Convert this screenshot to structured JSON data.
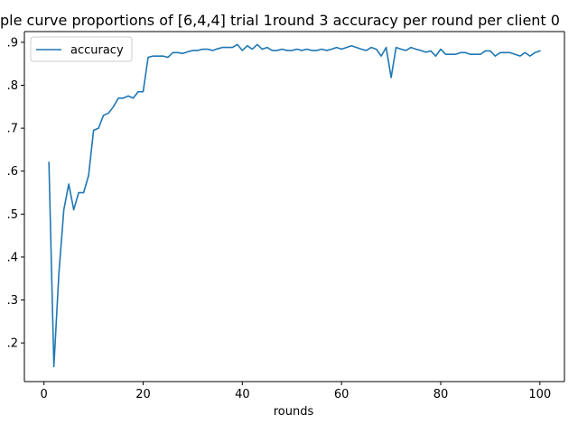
{
  "chart_data": {
    "type": "line",
    "title": "ple curve proportions of [6,4,4] trial 1round 3 accuracy per round per client 0",
    "xlabel": "rounds",
    "ylabel": "",
    "xlim": [
      -3.95,
      104.95
    ],
    "ylim": [
      0.11,
      0.925
    ],
    "xticks": [
      0,
      20,
      40,
      60,
      80,
      100
    ],
    "yticks": [
      0.2,
      0.3,
      0.4,
      0.5,
      0.6,
      0.7,
      0.8,
      0.9
    ],
    "ytick_labels": [
      ".2",
      ".3",
      ".4",
      ".5",
      ".6",
      ".7",
      ".8",
      ".9"
    ],
    "grid": false,
    "legend": {
      "position": "top-left",
      "entries": [
        "accuracy"
      ]
    },
    "series": [
      {
        "name": "accuracy",
        "color": "#1f77b4",
        "x": [
          1,
          2,
          3,
          4,
          5,
          6,
          7,
          8,
          9,
          10,
          11,
          12,
          13,
          14,
          15,
          16,
          17,
          18,
          19,
          20,
          21,
          22,
          23,
          24,
          25,
          26,
          27,
          28,
          29,
          30,
          31,
          32,
          33,
          34,
          35,
          36,
          37,
          38,
          39,
          40,
          41,
          42,
          43,
          44,
          45,
          46,
          47,
          48,
          49,
          50,
          51,
          52,
          53,
          54,
          55,
          56,
          57,
          58,
          59,
          60,
          61,
          62,
          63,
          64,
          65,
          66,
          67,
          68,
          69,
          70,
          71,
          72,
          73,
          74,
          75,
          76,
          77,
          78,
          79,
          80,
          81,
          82,
          83,
          84,
          85,
          86,
          87,
          88,
          89,
          90,
          91,
          92,
          93,
          94,
          95,
          96,
          97,
          98,
          99,
          100
        ],
        "y": [
          0.62,
          0.145,
          0.36,
          0.51,
          0.57,
          0.51,
          0.55,
          0.55,
          0.59,
          0.695,
          0.7,
          0.73,
          0.735,
          0.75,
          0.77,
          0.77,
          0.775,
          0.77,
          0.785,
          0.785,
          0.865,
          0.868,
          0.868,
          0.868,
          0.865,
          0.876,
          0.876,
          0.874,
          0.878,
          0.881,
          0.881,
          0.884,
          0.884,
          0.881,
          0.885,
          0.888,
          0.888,
          0.888,
          0.895,
          0.881,
          0.892,
          0.884,
          0.895,
          0.884,
          0.888,
          0.881,
          0.881,
          0.884,
          0.881,
          0.881,
          0.884,
          0.881,
          0.884,
          0.881,
          0.881,
          0.884,
          0.881,
          0.884,
          0.888,
          0.884,
          0.888,
          0.892,
          0.888,
          0.884,
          0.881,
          0.888,
          0.884,
          0.868,
          0.888,
          0.818,
          0.888,
          0.884,
          0.881,
          0.888,
          0.884,
          0.881,
          0.877,
          0.88,
          0.868,
          0.884,
          0.872,
          0.872,
          0.872,
          0.876,
          0.876,
          0.872,
          0.872,
          0.872,
          0.88,
          0.88,
          0.868,
          0.876,
          0.876,
          0.876,
          0.872,
          0.868,
          0.876,
          0.868,
          0.876,
          0.88
        ]
      }
    ]
  }
}
